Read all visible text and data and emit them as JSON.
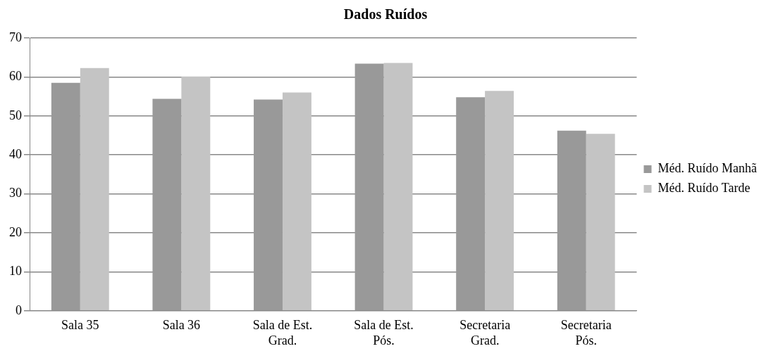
{
  "chart_data": {
    "type": "bar",
    "title": "Dados Ruídos",
    "categories": [
      "Sala 35",
      "Sala 36",
      "Sala de Est. Grad.",
      "Sala de Est. Pós.",
      "Secretaria Grad.",
      "Secretaria Pós."
    ],
    "series": [
      {
        "name": "Méd. Ruído Manhã",
        "color": "#999999",
        "values": [
          58.5,
          54.4,
          54.2,
          63.4,
          54.8,
          46.2
        ]
      },
      {
        "name": "Méd. Ruído Tarde",
        "color": "#c4c4c4",
        "values": [
          62.3,
          60.1,
          56.0,
          63.6,
          56.4,
          45.4
        ]
      }
    ],
    "ylim": [
      0,
      70
    ],
    "yticks": [
      0,
      10,
      20,
      30,
      40,
      50,
      60,
      70
    ],
    "grid": "y",
    "legend": "right"
  }
}
